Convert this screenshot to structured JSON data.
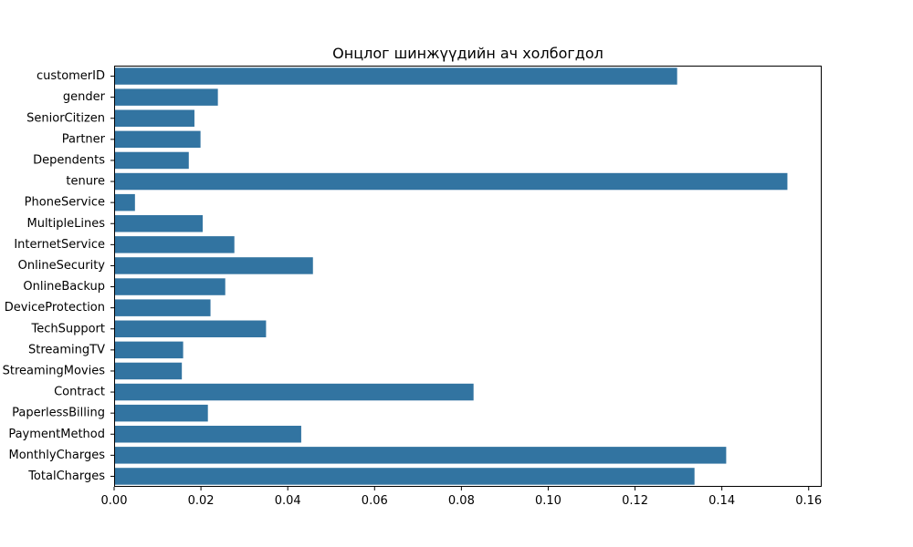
{
  "chart_data": {
    "type": "bar",
    "orientation": "horizontal",
    "title": "Онцлог шинжүүдийн ач холбогдол",
    "xlabel": "",
    "ylabel": "",
    "categories": [
      "customerID",
      "gender",
      "SeniorCitizen",
      "Partner",
      "Dependents",
      "tenure",
      "PhoneService",
      "MultipleLines",
      "InternetService",
      "OnlineSecurity",
      "OnlineBackup",
      "DeviceProtection",
      "TechSupport",
      "StreamingTV",
      "StreamingMovies",
      "Contract",
      "PaperlessBilling",
      "PaymentMethod",
      "MonthlyCharges",
      "TotalCharges"
    ],
    "values": [
      0.1297,
      0.0239,
      0.0185,
      0.0199,
      0.0172,
      0.1551,
      0.0048,
      0.0204,
      0.0277,
      0.0458,
      0.0256,
      0.0222,
      0.035,
      0.0159,
      0.0156,
      0.0828,
      0.0216,
      0.0431,
      0.141,
      0.1337
    ],
    "xlim": [
      0,
      0.163
    ],
    "xticks": [
      "0.00",
      "0.02",
      "0.04",
      "0.06",
      "0.08",
      "0.10",
      "0.12",
      "0.14",
      "0.16"
    ],
    "bar_color": "#3274a1",
    "grid": false,
    "legend": false
  }
}
